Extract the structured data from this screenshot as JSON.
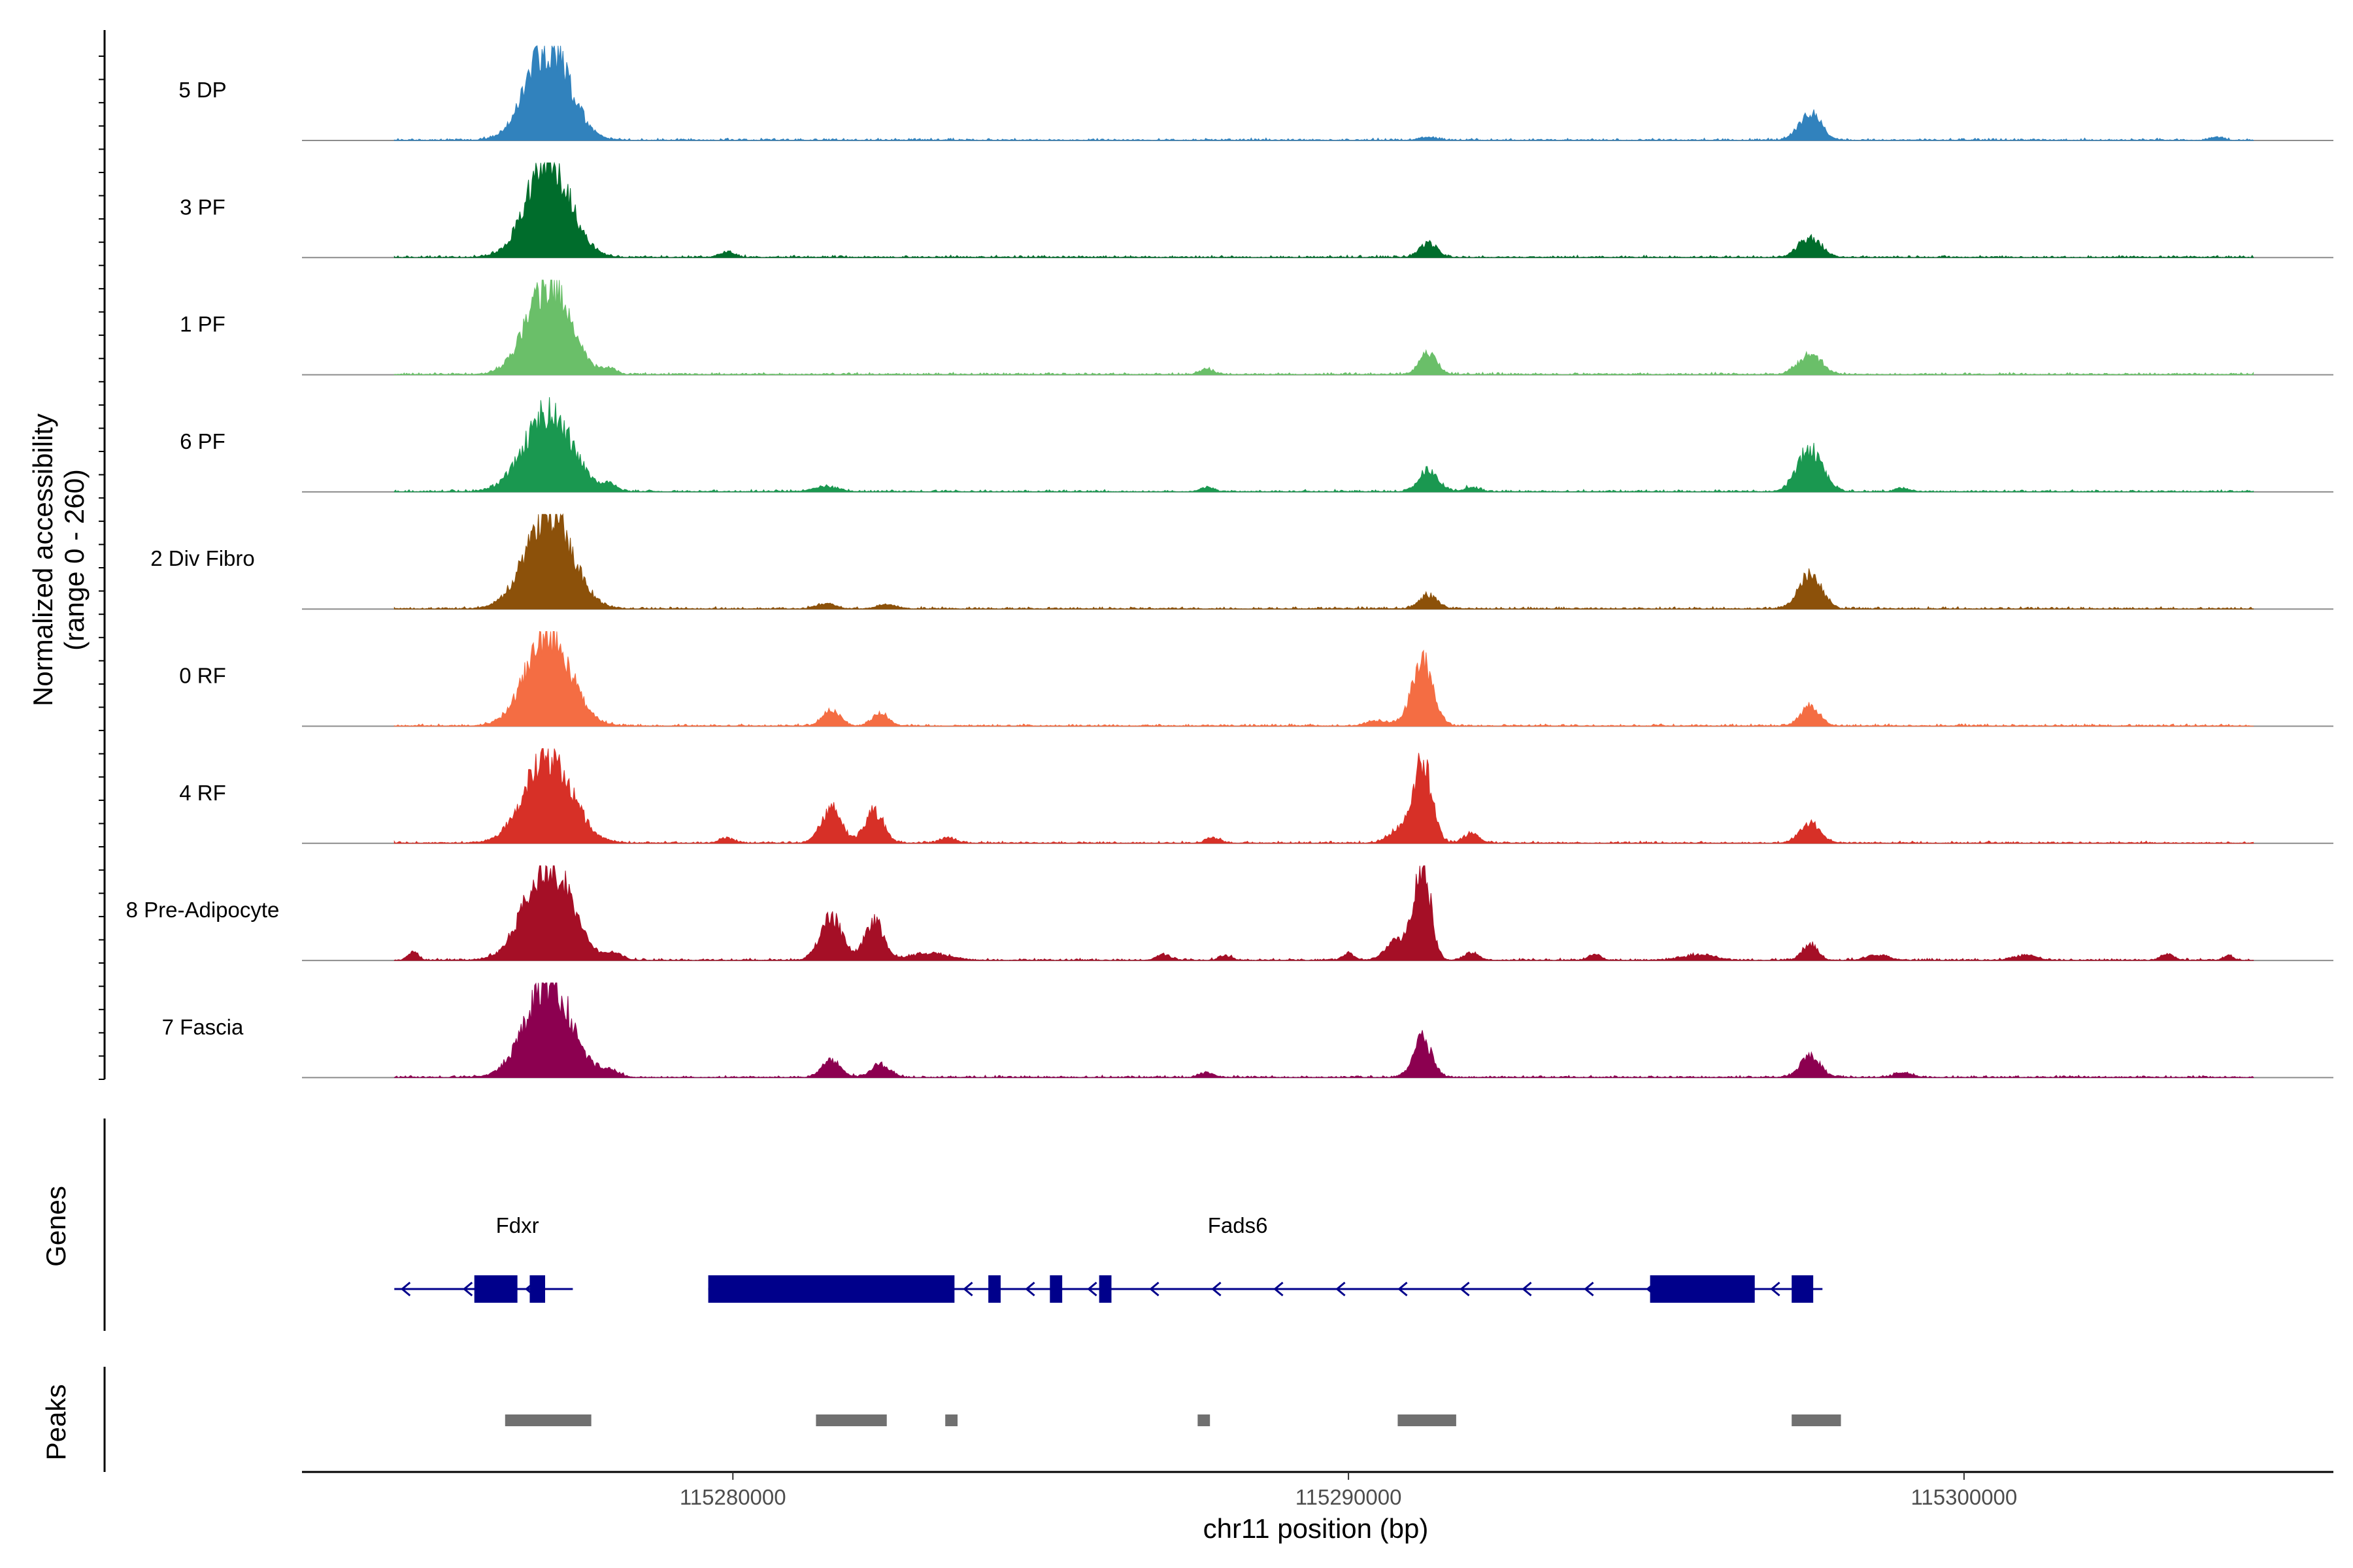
{
  "chart_data": {
    "type": "area",
    "chromosome": "chr11",
    "xlabel": "chr11 position (bp)",
    "ylabel": "Normalized accessibility",
    "ylabel_range": "(range 0 - 260)",
    "xlim": [
      115273000,
      115306000
    ],
    "ylim": [
      0,
      260
    ],
    "x_ticks": [
      {
        "value": 115280000,
        "label": "115280000"
      },
      {
        "value": 115290000,
        "label": "115290000"
      },
      {
        "value": 115300000,
        "label": "115300000"
      }
    ],
    "signal_extent": [
      115274500,
      115304700
    ],
    "noise_level": 7,
    "tracks": [
      {
        "name": "5 DP",
        "color": "#3182bd",
        "peaks": [
          [
            115277000,
            260,
            350
          ],
          [
            115297500,
            75,
            180
          ],
          [
            115291300,
            8,
            150
          ],
          [
            115304100,
            9,
            100
          ]
        ]
      },
      {
        "name": "3 PF",
        "color": "#006d2c",
        "peaks": [
          [
            115277000,
            270,
            350
          ],
          [
            115279900,
            16,
            120
          ],
          [
            115291300,
            40,
            140
          ],
          [
            115297500,
            55,
            180
          ]
        ]
      },
      {
        "name": "1 PF",
        "color": "#6abf69",
        "peaks": [
          [
            115277000,
            250,
            350
          ],
          [
            115278000,
            14,
            100
          ],
          [
            115287700,
            16,
            110
          ],
          [
            115291300,
            60,
            140
          ],
          [
            115297500,
            55,
            190
          ]
        ]
      },
      {
        "name": "6 PF",
        "color": "#1a9850",
        "peaks": [
          [
            115277000,
            225,
            380
          ],
          [
            115278000,
            18,
            110
          ],
          [
            115281500,
            14,
            200
          ],
          [
            115287700,
            12,
            110
          ],
          [
            115291300,
            60,
            160
          ],
          [
            115292000,
            12,
            120
          ],
          [
            115297500,
            120,
            200
          ],
          [
            115299000,
            10,
            110
          ]
        ]
      },
      {
        "name": "2 Div Fibro",
        "color": "#8c510a",
        "peaks": [
          [
            115277000,
            275,
            370
          ],
          [
            115281500,
            14,
            150
          ],
          [
            115282500,
            12,
            150
          ],
          [
            115291300,
            40,
            140
          ],
          [
            115297500,
            100,
            180
          ]
        ]
      },
      {
        "name": "0 RF",
        "color": "#f46d43",
        "peaks": [
          [
            115277000,
            255,
            360
          ],
          [
            115281600,
            45,
            140
          ],
          [
            115282400,
            35,
            130
          ],
          [
            115291200,
            175,
            170
          ],
          [
            115290500,
            14,
            200
          ],
          [
            115297500,
            55,
            150
          ]
        ]
      },
      {
        "name": "4 RF",
        "color": "#d73027",
        "peaks": [
          [
            115277000,
            240,
            380
          ],
          [
            115279900,
            14,
            120
          ],
          [
            115281600,
            100,
            160
          ],
          [
            115282300,
            90,
            150
          ],
          [
            115283500,
            14,
            130
          ],
          [
            115287800,
            16,
            110
          ],
          [
            115291200,
            230,
            150
          ],
          [
            115290800,
            35,
            160
          ],
          [
            115292000,
            28,
            120
          ],
          [
            115297500,
            60,
            160
          ]
        ]
      },
      {
        "name": "8 Pre-Adipocyte",
        "color": "#a50f26",
        "peaks": [
          [
            115274800,
            22,
            80
          ],
          [
            115277000,
            270,
            370
          ],
          [
            115278100,
            18,
            120
          ],
          [
            115281600,
            120,
            180
          ],
          [
            115282300,
            110,
            150
          ],
          [
            115283200,
            20,
            300
          ],
          [
            115287000,
            16,
            110
          ],
          [
            115288000,
            12,
            100
          ],
          [
            115290000,
            18,
            100
          ],
          [
            115290800,
            55,
            180
          ],
          [
            115291200,
            270,
            130
          ],
          [
            115292000,
            20,
            120
          ],
          [
            115294000,
            16,
            100
          ],
          [
            115295700,
            14,
            260
          ],
          [
            115297500,
            45,
            120
          ],
          [
            115298600,
            14,
            180
          ],
          [
            115301000,
            14,
            180
          ],
          [
            115303300,
            18,
            100
          ],
          [
            115304300,
            12,
            80
          ]
        ]
      },
      {
        "name": "7 Fascia",
        "color": "#8c0050",
        "peaks": [
          [
            115277000,
            265,
            370
          ],
          [
            115278000,
            15,
            150
          ],
          [
            115281600,
            50,
            150
          ],
          [
            115282400,
            35,
            150
          ],
          [
            115287700,
            14,
            110
          ],
          [
            115291200,
            110,
            150
          ],
          [
            115297500,
            60,
            160
          ],
          [
            115299000,
            12,
            150
          ]
        ]
      }
    ],
    "genes_label": "Genes",
    "genes": [
      {
        "name": "Fdxr",
        "label_x": 115276500,
        "line": [
          115274500,
          115277400
        ],
        "exons": [
          [
            115275800,
            115276500
          ],
          [
            115276700,
            115276950
          ]
        ]
      },
      {
        "name": "Fads6",
        "label_x": 115288200,
        "line": [
          115279600,
          115297700
        ],
        "exons": [
          [
            115279600,
            115283600
          ],
          [
            115284150,
            115284350
          ],
          [
            115285150,
            115285350
          ],
          [
            115285950,
            115286150
          ],
          [
            115294900,
            115296600
          ],
          [
            115297200,
            115297550
          ]
        ]
      }
    ],
    "gene_color": "#00008b",
    "peaks_label": "Peaks",
    "peak_color": "#707070",
    "peak_regions": [
      [
        115276300,
        115277700
      ],
      [
        115281350,
        115282500
      ],
      [
        115283450,
        115283650
      ],
      [
        115287550,
        115287750
      ],
      [
        115290800,
        115291750
      ],
      [
        115297200,
        115298000
      ]
    ]
  }
}
